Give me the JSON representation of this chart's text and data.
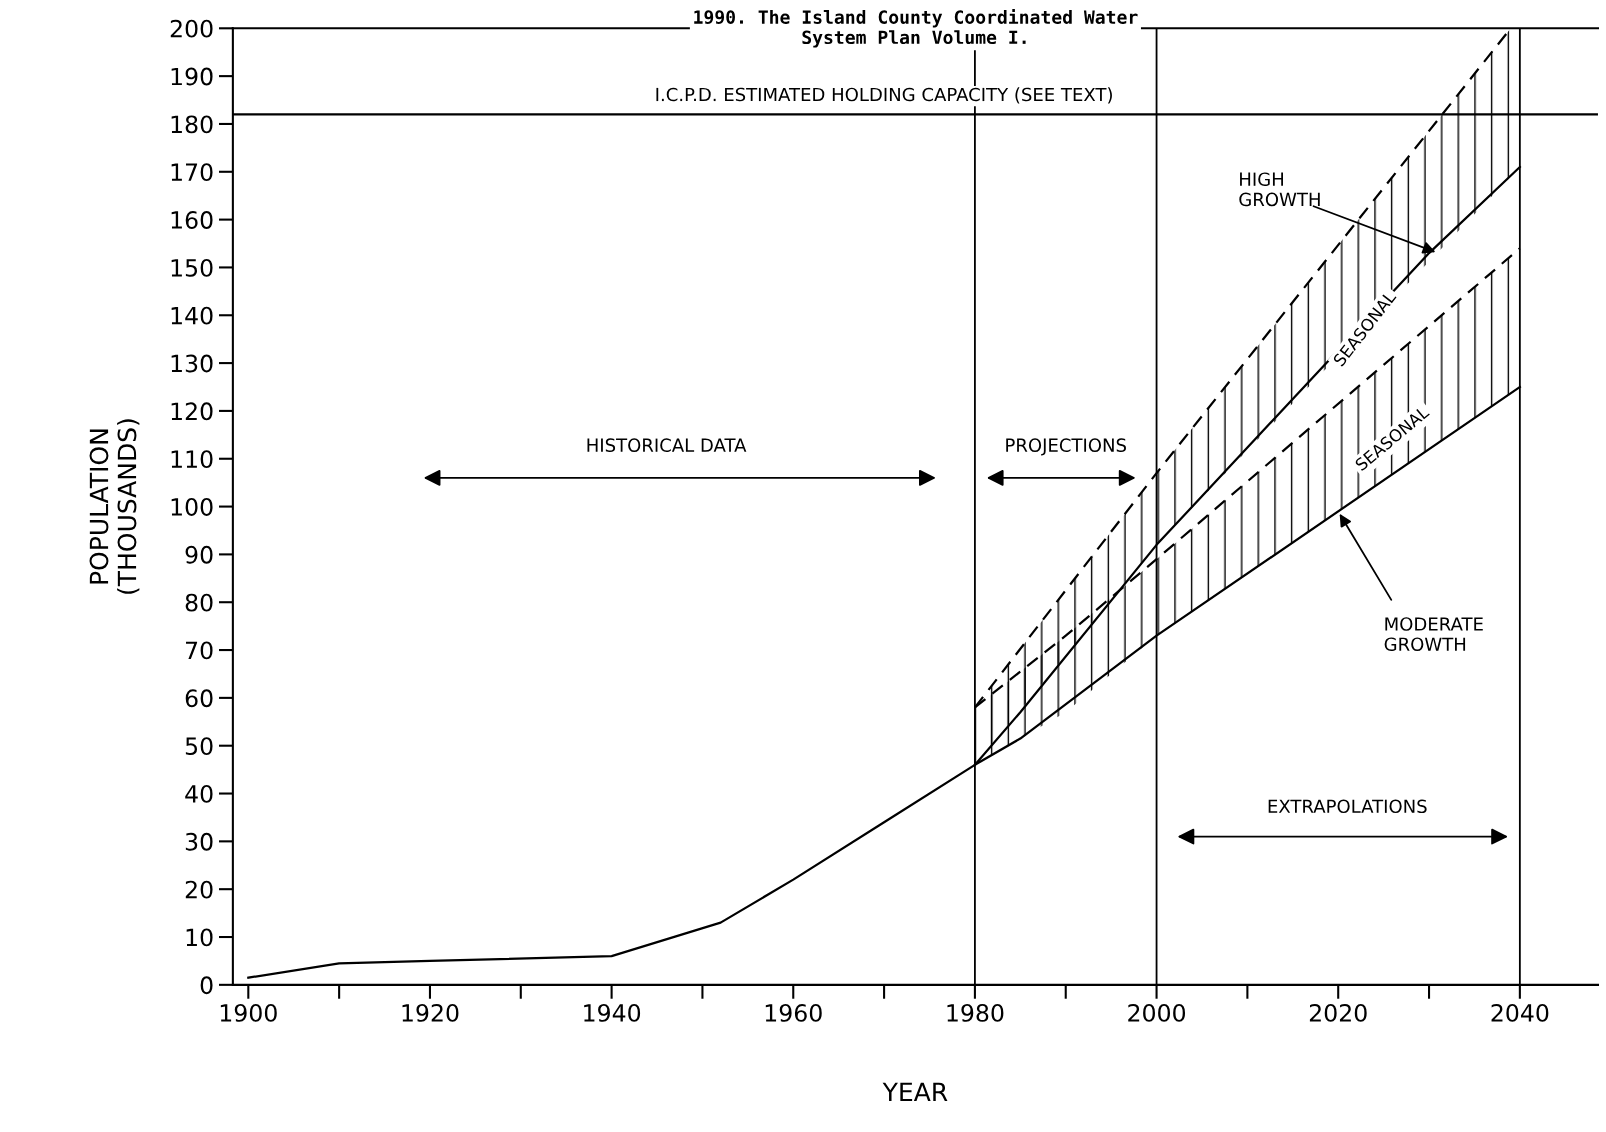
{
  "chart_data": {
    "type": "line",
    "xlabel": "YEAR",
    "ylabel": "POPULATION\n(THOUSANDS)",
    "xlim": [
      1898.3,
      2048.6
    ],
    "ylim": [
      0,
      200
    ],
    "xticks": [
      1900,
      {
        "value": 1910,
        "label": null
      },
      1920,
      {
        "value": 1930,
        "label": null
      },
      1940,
      {
        "value": 1950,
        "label": null
      },
      1960,
      {
        "value": 1970,
        "label": null
      },
      1980,
      {
        "value": 1990,
        "label": null
      },
      2000,
      {
        "value": 2010,
        "label": null
      },
      2020,
      {
        "value": 2030,
        "label": null
      },
      2040
    ],
    "yticks": [
      0,
      10,
      20,
      30,
      40,
      50,
      60,
      70,
      80,
      90,
      100,
      110,
      120,
      130,
      140,
      150,
      160,
      170,
      180,
      190,
      200
    ],
    "line_style": "solid",
    "marker": "none",
    "series": [
      {
        "color": "#000000",
        "x": [
          1900,
          1910,
          1920,
          1940,
          1952,
          1960,
          1970,
          1980,
          1985,
          2000,
          2040
        ],
        "values": [
          1.5,
          4.5,
          5,
          6,
          13,
          22,
          34,
          46,
          51.5,
          73,
          125
        ]
      },
      {
        "color": "#000000",
        "line_style": "dashed",
        "x": [
          1980,
          1990,
          2000,
          2040
        ],
        "values": [
          58,
          73,
          89,
          154
        ],
        "lower": [
          46,
          57,
          73,
          125
        ],
        "upper": [
          58,
          73,
          89,
          154
        ]
      },
      {
        "color": "#000000",
        "x": [
          1980,
          1985,
          2000,
          2030,
          2040
        ],
        "values": [
          46,
          57,
          92,
          153,
          171
        ]
      },
      {
        "color": "#000000",
        "line_style": "dashed",
        "x": [
          1980,
          2000,
          2039
        ],
        "values": [
          58,
          107,
          200
        ],
        "lower": [
          46,
          92,
          169
        ],
        "upper": [
          58,
          107,
          200
        ]
      }
    ],
    "ref_lines": [
      {
        "axis": "y",
        "value": 182,
        "label": "I.C.P.D. ESTIMATED HOLDING CAPACITY (SEE TEXT)",
        "color": "#000000"
      },
      {
        "axis": "x",
        "value": 1980,
        "color": "#000000"
      },
      {
        "axis": "x",
        "value": 2000,
        "color": "#000000"
      },
      {
        "axis": "x",
        "value": 2040,
        "color": "#000000"
      }
    ],
    "annotations": [
      "1990. The Island County Coordinated Water\nSystem Plan Volume I.",
      "HISTORICAL DATA",
      "PROJECTIONS",
      "EXTRAPOLATIONS",
      {
        "text": "HIGH\nGROWTH",
        "x": 2031,
        "y": 153
      },
      {
        "text": "MODERATE\nGROWTH",
        "x": 2020,
        "y": 99
      },
      "SEASONAL",
      "SEASONAL"
    ]
  }
}
